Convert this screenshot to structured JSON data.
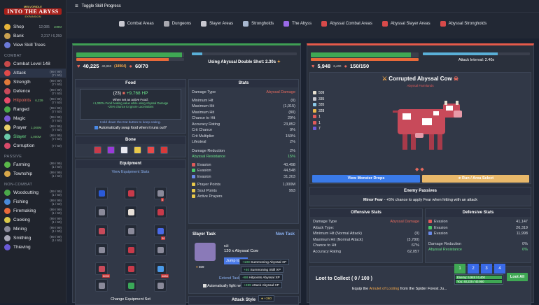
{
  "logo": {
    "line1": "MELVORIDLE",
    "line2": "INTO THE ABYSS",
    "line3": "EXPANSION"
  },
  "sidebar": {
    "top": [
      {
        "label": "Shop",
        "value": "12,085",
        "sub": "109M",
        "color": "#e6b43a"
      },
      {
        "label": "Bank",
        "value": "2,217 / 6,259",
        "color": "#c8a050"
      },
      {
        "label": "View Skill Trees",
        "value": "",
        "color": "#6b7ad8"
      }
    ],
    "combat_head": "COMBAT",
    "combat_level": "Combat Level 148",
    "skills": [
      {
        "label": "Attack",
        "lvl": "(99 / 99)",
        "lvl2": "(7 / 60)",
        "color": "#e04a4a",
        "active": true
      },
      {
        "label": "Strength",
        "lvl": "(99 / 99)",
        "lvl2": "(7 / 60)",
        "color": "#e07a3a"
      },
      {
        "label": "Defence",
        "lvl": "(99 / 99)",
        "lvl2": "(7 / 60)",
        "color": "#c84a5a"
      },
      {
        "label": "Hitpoints",
        "lvl": "(99 / 99)",
        "lvl2": "(7 / 60)",
        "sub": "6,239",
        "color": "#e84a6a",
        "red": true
      },
      {
        "label": "Ranged",
        "lvl": "(99 / 99)",
        "lvl2": "(7 / 60)",
        "color": "#4aa84a"
      },
      {
        "label": "Magic",
        "lvl": "(99 / 99)",
        "lvl2": "(7 / 60)",
        "color": "#7a5ad8"
      },
      {
        "label": "Prayer",
        "lvl": "(99 / 99)",
        "lvl2": "(7 / 60)",
        "sub": "1,000M",
        "color": "#e8d06a"
      },
      {
        "label": "Slayer",
        "lvl": "(99 / 99)",
        "lvl2": "(7 / 60)",
        "sub": "1,000M",
        "color": "#6ac8a8"
      },
      {
        "label": "Corruption",
        "lvl": "(7 / 60)",
        "lvl2": "",
        "color": "#d84a6a"
      }
    ],
    "passive_head": "PASSIVE",
    "passive": [
      {
        "label": "Farming",
        "lvl": "(99 / 99)",
        "lvl2": "(1 / 60)",
        "color": "#5ab84a"
      },
      {
        "label": "Township",
        "lvl": "(99 / 99)",
        "lvl2": "(1 / 60)",
        "color": "#d8a84a"
      }
    ],
    "noncombat_head": "NON-COMBAT",
    "noncombat": [
      {
        "label": "Woodcutting",
        "lvl": "(99 / 99)",
        "lvl2": "(1 / 60)",
        "color": "#4aa84a"
      },
      {
        "label": "Fishing",
        "lvl": "(99 / 99)",
        "lvl2": "(1 / 60)",
        "color": "#4a8ad8"
      },
      {
        "label": "Firemaking",
        "lvl": "(99 / 99)",
        "lvl2": "(1 / 60)",
        "color": "#e86a3a"
      },
      {
        "label": "Cooking",
        "lvl": "(99 / 99)",
        "lvl2": "(1 / 60)",
        "color": "#d8c84a"
      },
      {
        "label": "Mining",
        "lvl": "(99 / 99)",
        "lvl2": "(1 / 60)",
        "color": "#8a8a9a"
      },
      {
        "label": "Smithing",
        "lvl": "(99 / 99)",
        "lvl2": "(1 / 60)",
        "color": "#a8a8b8"
      },
      {
        "label": "Thieving",
        "lvl": "",
        "lvl2": "",
        "color": "#6a5ad8"
      }
    ]
  },
  "topbar": {
    "toggle": "Toggle Skill Progress",
    "tabs": [
      "Combat Areas",
      "Dungeons",
      "Slayer Areas",
      "Strongholds",
      "The Abyss",
      "Abyssal Combat Areas",
      "Abyssal Slayer Areas",
      "Abyssal Strongholds"
    ]
  },
  "player": {
    "hp": "40,225",
    "hp_max": "40,950",
    "food": "(18964)",
    "prayer": "60/70",
    "attack_label": "Using Abyssal Double Shot: 2.30s"
  },
  "food": {
    "title": "Food",
    "qty": "(23)",
    "heal": "+9,768 HP",
    "active_head": "When set as active Food:",
    "line1": "+1,000% Food healing value while using Abyssal Damage",
    "line2": "+25% chance to ignore Lacerations",
    "hint": "Hold down the Eat button to keep eating.",
    "auto": "Automatically swap food when it runs out?"
  },
  "equipment_sets": {
    "title": "Bone",
    "title2": "Equipment",
    "view": "View Equipment Stats",
    "qty1": "0",
    "qty2": "30",
    "qty3": "5099",
    "qty4": "4884",
    "change": "Change Equipment Set"
  },
  "stats": {
    "title": "Stats",
    "damage_type_label": "Damage Type",
    "damage_type": "Abyssal Damage",
    "rows": [
      [
        "Minimum Hit",
        "(0)"
      ],
      [
        "Maximum Hit",
        "(1,015)"
      ],
      [
        "Maximum Hit",
        "(80)"
      ],
      [
        "Chance to Hit",
        "29%"
      ],
      [
        "Accuracy Rating",
        "23,852"
      ],
      [
        "Crit Chance",
        "0%"
      ],
      [
        "Crit Multiplier",
        "150%"
      ],
      [
        "Lifesteal",
        "2%"
      ]
    ],
    "dr": [
      "Damage Reduction",
      "2%"
    ],
    "ar": [
      "Abyssal Resistance",
      "15%"
    ],
    "eva": [
      [
        "Evasion",
        "40,498"
      ],
      [
        "Evasion",
        "44,548"
      ],
      [
        "Evasion",
        "31,203"
      ]
    ],
    "pp": [
      [
        "Prayer Points",
        "1,000M"
      ],
      [
        "Soul Points",
        "993"
      ],
      [
        "Active Prayers",
        ""
      ]
    ]
  },
  "slayer": {
    "title": "Slayer Task",
    "new": "New Task",
    "kill": "Kill",
    "task": "120 x Abyssal Cow",
    "jump": "Jump to",
    "extend": "Extend Task",
    "auto": "Automatically fight new Slayer Task?",
    "qty": "509"
  },
  "attack_style": "Attack Style",
  "toasts": [
    {
      "amt": "+108",
      "label": "Summoning Abyssal XP"
    },
    {
      "amt": "+40",
      "label": "Summoning Skill XP"
    },
    {
      "amt": "+88",
      "label": "Hitpoints Abyssal XP"
    },
    {
      "amt": "+289",
      "label": "Attack Abyssal XP"
    }
  ],
  "toast_coins": "+360",
  "enemy": {
    "hp": "5,948",
    "hp_max": "6,400",
    "prayer": "150/150",
    "interval": "Attack Interval: 2.40s",
    "name": "Corrupted Abyssal Cow",
    "area": "Abyssal Farmlands",
    "side": [
      "509",
      "335",
      "335",
      "328",
      "1",
      "1",
      "7"
    ],
    "drops": "View Monster Drops",
    "run": "Run / Area Select",
    "passives_title": "Enemy Passives",
    "minor": "Minor Fear",
    "minor_desc": "- +5% chance to apply Fear when hitting with an attack",
    "off_title": "Offensive Stats",
    "def_title": "Defensive Stats",
    "off": [
      [
        "Damage Type",
        "Abyssal Damage"
      ],
      [
        "Attack Type:",
        ""
      ],
      [
        "Minimum Hit (Normal Attack)",
        "(0)"
      ],
      [
        "Maximum Hit (Normal Attack)",
        "(3,780)"
      ],
      [
        "Chance to Hit",
        "67%"
      ],
      [
        "Accuracy Rating",
        "62,057"
      ]
    ],
    "def": [
      [
        "Evasion",
        "41,147"
      ],
      [
        "Evasion",
        "26,319"
      ],
      [
        "Evasion",
        "11,998"
      ]
    ],
    "def_dr": [
      "Damage Reduction",
      "0%"
    ],
    "def_ar": [
      "Abyssal Resistance",
      "6%"
    ],
    "loot_title": "Loot to Collect ( 0 / 100 )",
    "loot_all": "Loot All",
    "loot_hint_a": "Equip the",
    "loot_hint_b": "Amulet of Looting",
    "loot_hint_c": "from the Spider Forest Ju...",
    "pages": [
      "1",
      "2",
      "3",
      "4"
    ],
    "mini_enemy": "Enemy: 5,948 / 6,400",
    "mini_you": "You: 40,225 / 40,950"
  }
}
